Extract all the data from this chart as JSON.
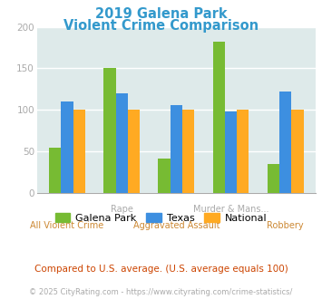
{
  "title_line1": "2019 Galena Park",
  "title_line2": "Violent Crime Comparison",
  "title_color": "#3399cc",
  "categories": [
    "All Violent Crime",
    "Rape",
    "Aggravated Assault",
    "Murder & Mans...",
    "Robbery"
  ],
  "series": {
    "Galena Park": [
      54,
      151,
      41,
      182,
      35
    ],
    "Texas": [
      110,
      120,
      106,
      98,
      122
    ],
    "National": [
      100,
      100,
      100,
      100,
      100
    ]
  },
  "colors": {
    "Galena Park": "#77bb33",
    "Texas": "#3d8fe0",
    "National": "#ffaa22"
  },
  "ylim": [
    0,
    200
  ],
  "yticks": [
    0,
    50,
    100,
    150,
    200
  ],
  "background_color": "#deeaea",
  "grid_color": "#ffffff",
  "row1_labels": [
    "",
    "Rape",
    "",
    "Murder & Mans...",
    ""
  ],
  "row2_labels": [
    "All Violent Crime",
    "",
    "Aggravated Assault",
    "",
    "Robbery"
  ],
  "row1_color": "#aaaaaa",
  "row2_color": "#cc8833",
  "footer_text": "Compared to U.S. average. (U.S. average equals 100)",
  "footer_color": "#cc4400",
  "credit_text": "© 2025 CityRating.com - https://www.cityrating.com/crime-statistics/",
  "credit_color": "#aaaaaa",
  "tick_label_color": "#aaaaaa",
  "bar_width": 0.22
}
